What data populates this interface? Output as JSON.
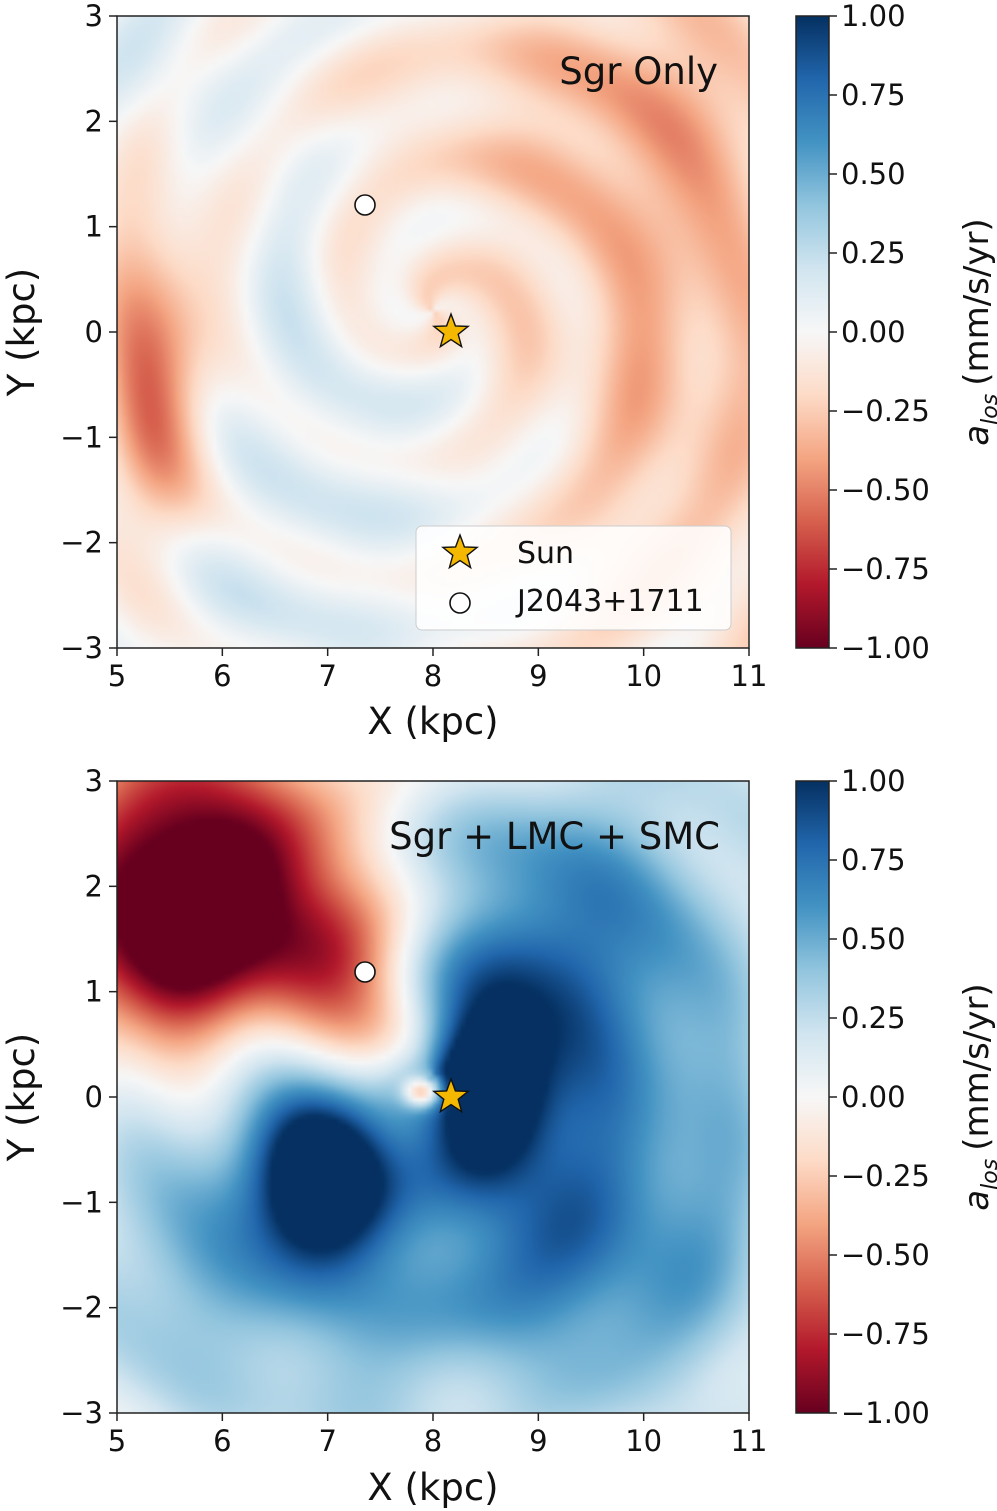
{
  "colorbar": {
    "label_main": "a",
    "label_sub": "los",
    "label_units": "(mm/s/yr)",
    "ticks": [
      1.0,
      0.75,
      0.5,
      0.25,
      0.0,
      -0.25,
      -0.5,
      -0.75,
      -1.0
    ],
    "tick_labels": [
      "1.00",
      "0.75",
      "0.50",
      "0.25",
      "0.00",
      "−0.25",
      "−0.50",
      "−0.75",
      "−1.00"
    ],
    "range": [
      -1.0,
      1.0
    ],
    "colors_stops": [
      "#67001f",
      "#b2182b",
      "#d6604d",
      "#f4a582",
      "#fddbc7",
      "#f7f7f7",
      "#d1e5f0",
      "#92c5de",
      "#4393c3",
      "#2166ac",
      "#053061"
    ]
  },
  "legend": {
    "entries": [
      {
        "label": "Sun",
        "marker": "star-icon"
      },
      {
        "label": "J2043+1711",
        "marker": "circle-icon"
      }
    ]
  },
  "markers": {
    "sun": {
      "x": 8.18,
      "y": 0.0,
      "color": "#f5b800"
    },
    "pulsar": {
      "x": 7.35,
      "y": 1.18
    }
  },
  "chart_data": [
    {
      "type": "heatmap",
      "title": "Sgr Only",
      "xlabel": "X (kpc)",
      "ylabel": "Y (kpc)",
      "xlim": [
        5,
        11
      ],
      "ylim": [
        -3,
        3
      ],
      "xticks": [
        5,
        6,
        7,
        8,
        9,
        10,
        11
      ],
      "yticks": [
        3,
        2,
        1,
        0,
        -1,
        -2,
        -3
      ],
      "xtick_labels": [
        "5",
        "6",
        "7",
        "8",
        "9",
        "10",
        "11"
      ],
      "ytick_labels": [
        "3",
        "2",
        "1",
        "0",
        "−1",
        "−2",
        "−3"
      ],
      "field_features": [
        {
          "x": 5.35,
          "y": -0.4,
          "sx": 0.35,
          "sy": 1.1,
          "a": -0.55
        },
        {
          "x": 10.3,
          "y": 1.8,
          "sx": 1.0,
          "sy": 1.4,
          "a": -0.3
        },
        {
          "x": 10.3,
          "y": -1.2,
          "sx": 1.1,
          "sy": 1.6,
          "a": -0.25
        },
        {
          "x": 8.6,
          "y": 2.2,
          "sx": 1.2,
          "sy": 0.7,
          "a": -0.15
        },
        {
          "x": 7.9,
          "y": 0.4,
          "sx": 0.6,
          "sy": 0.6,
          "a": -0.12
        },
        {
          "x": 6.8,
          "y": -0.3,
          "sx": 0.5,
          "sy": 1.0,
          "a": 0.12
        },
        {
          "x": 5.6,
          "y": 2.6,
          "sx": 0.6,
          "sy": 0.6,
          "a": 0.1
        },
        {
          "x": 6.5,
          "y": -2.4,
          "sx": 1.0,
          "sy": 0.6,
          "a": 0.1
        },
        {
          "x": 8.0,
          "y": -1.0,
          "sx": 0.7,
          "sy": 0.5,
          "a": 0.08
        }
      ],
      "ripple": {
        "cx": 8.0,
        "cy": 0.2,
        "amp": 0.1,
        "wavelength": 1.1
      }
    },
    {
      "type": "heatmap",
      "title": "Sgr + LMC + SMC",
      "xlabel": "X (kpc)",
      "ylabel": "Y (kpc)",
      "xlim": [
        5,
        11
      ],
      "ylim": [
        -3,
        3
      ],
      "xticks": [
        5,
        6,
        7,
        8,
        9,
        10,
        11
      ],
      "yticks": [
        3,
        2,
        1,
        0,
        -1,
        -2,
        -3
      ],
      "xtick_labels": [
        "5",
        "6",
        "7",
        "8",
        "9",
        "10",
        "11"
      ],
      "ytick_labels": [
        "3",
        "2",
        "1",
        "0",
        "−1",
        "−2",
        "−3"
      ],
      "field_features": [
        {
          "x": 5.8,
          "y": 2.1,
          "sx": 0.9,
          "sy": 0.9,
          "a": -1.2
        },
        {
          "x": 5.3,
          "y": 1.3,
          "sx": 0.5,
          "sy": 0.6,
          "a": -0.5
        },
        {
          "x": 6.9,
          "y": 1.4,
          "sx": 0.6,
          "sy": 0.5,
          "a": -0.55
        },
        {
          "x": 7.5,
          "y": 0.6,
          "sx": 0.4,
          "sy": 0.4,
          "a": -0.45
        },
        {
          "x": 7.9,
          "y": 0.05,
          "sx": 0.12,
          "sy": 0.1,
          "a": -0.9
        },
        {
          "x": 6.95,
          "y": -0.75,
          "sx": 0.45,
          "sy": 0.65,
          "a": 1.25
        },
        {
          "x": 8.5,
          "y": 0.15,
          "sx": 0.4,
          "sy": 0.6,
          "a": 1.0
        },
        {
          "x": 9.0,
          "y": 1.3,
          "sx": 1.0,
          "sy": 1.2,
          "a": 0.65
        },
        {
          "x": 8.8,
          "y": -1.5,
          "sx": 1.3,
          "sy": 1.0,
          "a": 0.6
        },
        {
          "x": 5.7,
          "y": -1.5,
          "sx": 0.8,
          "sy": 1.2,
          "a": 0.45
        },
        {
          "x": 10.3,
          "y": 0.0,
          "sx": 1.0,
          "sy": 2.5,
          "a": 0.3
        },
        {
          "x": 7.3,
          "y": -2.8,
          "sx": 0.6,
          "sy": 0.4,
          "a": 0.25
        }
      ],
      "ripple": {
        "cx": 8.0,
        "cy": 0.2,
        "amp": 0.06,
        "wavelength": 1.3
      }
    }
  ]
}
